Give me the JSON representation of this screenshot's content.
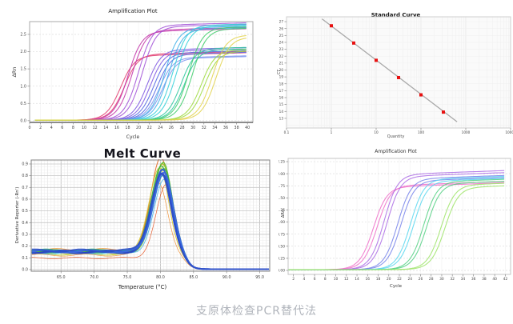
{
  "page": {
    "caption": "支原体检查PCR替代法"
  },
  "chart_data": [
    {
      "id": "amp1",
      "type": "line",
      "subtype": "amplification",
      "title": "Amplification Plot",
      "xlabel": "Cycle",
      "ylabel": "ΔRn",
      "xlim": [
        0,
        41
      ],
      "ylim": [
        -0.05,
        2.87
      ],
      "xticks": [
        0,
        2,
        4,
        6,
        8,
        10,
        12,
        14,
        16,
        18,
        20,
        22,
        24,
        26,
        28,
        30,
        32,
        34,
        36,
        38,
        40
      ],
      "yticks": [
        0.0,
        0.5,
        1.0,
        1.5,
        2.0,
        2.5
      ],
      "xdec": 0,
      "ydec": 1,
      "tick_fs": 4.8,
      "bg": "#ffffff",
      "frame": "#aaaaaa",
      "grid": "dotted-horizontal",
      "curves": [
        {
          "color": "#e23b6e",
          "ct": 16.8,
          "plateau": 1.86
        },
        {
          "color": "#e23b6e",
          "ct": 17.5,
          "plateau": 1.9
        },
        {
          "color": "#c233a8",
          "ct": 18.2,
          "plateau": 2.56
        },
        {
          "color": "#c233a8",
          "ct": 18.9,
          "plateau": 2.6
        },
        {
          "color": "#a04fd6",
          "ct": 20.1,
          "plateau": 2.74
        },
        {
          "color": "#a04fd6",
          "ct": 20.8,
          "plateau": 2.7
        },
        {
          "color": "#7b55e0",
          "ct": 21.7,
          "plateau": 2.03
        },
        {
          "color": "#7b55e0",
          "ct": 22.3,
          "plateau": 1.99
        },
        {
          "color": "#4f63e2",
          "ct": 22.9,
          "plateau": 1.94
        },
        {
          "color": "#4f63e2",
          "ct": 23.5,
          "plateau": 1.9
        },
        {
          "color": "#7d93ef",
          "ct": 23.9,
          "plateau": 1.8
        },
        {
          "color": "#7d93ef",
          "ct": 24.5,
          "plateau": 1.78
        },
        {
          "color": "#3fb0e8",
          "ct": 24.9,
          "plateau": 2.66
        },
        {
          "color": "#3fb0e8",
          "ct": 25.6,
          "plateau": 2.62
        },
        {
          "color": "#2fcfd8",
          "ct": 26.4,
          "plateau": 2.73
        },
        {
          "color": "#2fcfd8",
          "ct": 27.1,
          "plateau": 2.7
        },
        {
          "color": "#2bc79c",
          "ct": 27.9,
          "plateau": 2.06
        },
        {
          "color": "#2bc79c",
          "ct": 28.5,
          "plateau": 2.02
        },
        {
          "color": "#3ecb6a",
          "ct": 29.3,
          "plateau": 2.66
        },
        {
          "color": "#3ecb6a",
          "ct": 30.0,
          "plateau": 2.62
        },
        {
          "color": "#9ed93e",
          "ct": 31.6,
          "plateau": 2.01
        },
        {
          "color": "#9ed93e",
          "ct": 32.2,
          "plateau": 1.97
        },
        {
          "color": "#e2d24e",
          "ct": 33.6,
          "plateau": 2.44
        },
        {
          "color": "#e2d24e",
          "ct": 34.3,
          "plateau": 2.38
        }
      ]
    },
    {
      "id": "std",
      "type": "scatter",
      "title": "Standard Curve",
      "xlabel": "Quantity",
      "ylabel": "CT",
      "xscale": "log",
      "xlim": [
        0.1,
        10000
      ],
      "ylim": [
        11.6,
        27.7
      ],
      "xticks": [
        0.1,
        1,
        10,
        100,
        1000,
        10000
      ],
      "yticks": [
        13,
        14,
        15,
        16,
        17,
        18,
        19,
        20,
        21,
        22,
        23,
        24,
        25,
        26,
        27
      ],
      "xdec": 0,
      "ydec": 0,
      "tick_fs": 4.2,
      "bg": "#fafafa",
      "frame": "#cfcfcf",
      "point_color": "#e81010",
      "line_color": "#a8a8a8",
      "points": [
        {
          "quantity": 1,
          "ct": 26.4
        },
        {
          "quantity": 3.16,
          "ct": 23.9
        },
        {
          "quantity": 10,
          "ct": 21.4
        },
        {
          "quantity": 31.6,
          "ct": 18.9
        },
        {
          "quantity": 100,
          "ct": 16.4
        },
        {
          "quantity": 316,
          "ct": 13.9
        }
      ],
      "trendline": {
        "q1": 0.62,
        "ct1": 27.4,
        "q2": 640,
        "ct2": 12.5
      }
    },
    {
      "id": "melt",
      "type": "line",
      "subtype": "melt",
      "title": "Melt Curve",
      "xlabel": "Temperature (°C)",
      "ylabel": "Derivative Reporter (-Rn')",
      "xlim": [
        60.5,
        96.5
      ],
      "ylim": [
        -0.014,
        0.934
      ],
      "xticks": [
        65.0,
        70.0,
        75.0,
        80.0,
        85.0,
        90.0,
        95.0
      ],
      "yticks": [
        0.0,
        0.1,
        0.2,
        0.3,
        0.4,
        0.5,
        0.6,
        0.7,
        0.8,
        0.9
      ],
      "xdec": 1,
      "ydec": 1,
      "tick_fs": 4.8,
      "bg": "#ffffff",
      "frame": "#808080",
      "grid": "fine-mesh",
      "curves": [
        {
          "color": "#ef8c2c",
          "peak": 79.7,
          "height": 0.745,
          "base": 0.12,
          "lw": 0.7
        },
        {
          "color": "#e4501e",
          "peak": 80.9,
          "height": 0.72,
          "base": 0.095,
          "lw": 0.7
        },
        {
          "color": "#e4661e",
          "peak": 80.1,
          "height": 0.945,
          "base": 0.155,
          "lw": 1.0
        },
        {
          "color": "#f09a38",
          "peak": 80.4,
          "height": 0.9,
          "base": 0.165,
          "lw": 1.0
        },
        {
          "color": "#d9c832",
          "peak": 79.9,
          "height": 0.875,
          "base": 0.14,
          "lw": 1.0
        },
        {
          "color": "#b5d23c",
          "peak": 80.5,
          "height": 0.885,
          "base": 0.13,
          "lw": 1.0
        },
        {
          "color": "#8cc92e",
          "peak": 80.3,
          "height": 0.895,
          "base": 0.15,
          "lw": 1.2
        },
        {
          "color": "#5abf2f",
          "peak": 80.45,
          "height": 0.905,
          "base": 0.145,
          "lw": 1.2
        },
        {
          "color": "#37b33f",
          "peak": 80.2,
          "height": 0.885,
          "base": 0.155,
          "lw": 1.2
        },
        {
          "color": "#2aa468",
          "peak": 80.5,
          "height": 0.87,
          "base": 0.16,
          "lw": 1.2
        },
        {
          "color": "#23a79e",
          "peak": 80.45,
          "height": 0.805,
          "base": 0.15,
          "lw": 1.2
        },
        {
          "color": "#54b9e6",
          "peak": 80.6,
          "height": 0.76,
          "base": 0.14,
          "lw": 1.0
        },
        {
          "color": "#2f55d6",
          "peak": 80.35,
          "height": 0.845,
          "base": 0.15,
          "lw": 2.0
        },
        {
          "color": "#2743c0",
          "peak": 80.25,
          "height": 0.825,
          "base": 0.145,
          "lw": 2.0
        },
        {
          "color": "#3b66e2",
          "peak": 80.5,
          "height": 0.835,
          "base": 0.152,
          "lw": 2.0
        },
        {
          "color": "#2f4fc8",
          "peak": 80.15,
          "height": 0.815,
          "base": 0.158,
          "lw": 2.0
        }
      ]
    },
    {
      "id": "amp2",
      "type": "line",
      "subtype": "amplification",
      "title": "Amplification Plot",
      "xlabel": "Cycle",
      "ylabel": "ΔRn",
      "xlim": [
        1,
        43
      ],
      "ylim": [
        -0.083,
        2.317
      ],
      "xticks": [
        2,
        4,
        6,
        8,
        10,
        12,
        14,
        16,
        18,
        20,
        22,
        24,
        26,
        28,
        30,
        32,
        34,
        36,
        38,
        40,
        42
      ],
      "yticks": [
        0.0,
        0.25,
        0.5,
        0.75,
        1.0,
        1.25,
        1.5,
        1.75,
        2.0,
        2.25
      ],
      "xdec": 0,
      "ydec": 2,
      "tick_fs": 4.4,
      "bg": "#ffffff",
      "frame": "#c4c4c4",
      "grid": "dotted-horizontal",
      "curves": [
        {
          "color": "#ef6ec9",
          "ct": 17.2,
          "plateau": 1.7
        },
        {
          "color": "#ef6ec9",
          "ct": 17.9,
          "plateau": 1.73
        },
        {
          "color": "#ab6ce4",
          "ct": 19.2,
          "plateau": 1.96
        },
        {
          "color": "#ab6ce4",
          "ct": 19.8,
          "plateau": 1.92
        },
        {
          "color": "#7583ea",
          "ct": 21.8,
          "plateau": 1.87
        },
        {
          "color": "#7583ea",
          "ct": 22.4,
          "plateau": 1.83
        },
        {
          "color": "#59d7ef",
          "ct": 24.2,
          "plateau": 1.86
        },
        {
          "color": "#59d7ef",
          "ct": 24.8,
          "plateau": 1.82
        },
        {
          "color": "#54d083",
          "ct": 26.7,
          "plateau": 1.81
        },
        {
          "color": "#54d083",
          "ct": 27.3,
          "plateau": 1.77
        },
        {
          "color": "#9de468",
          "ct": 30.0,
          "plateau": 1.74
        },
        {
          "color": "#9de468",
          "ct": 30.7,
          "plateau": 1.69
        }
      ]
    }
  ]
}
